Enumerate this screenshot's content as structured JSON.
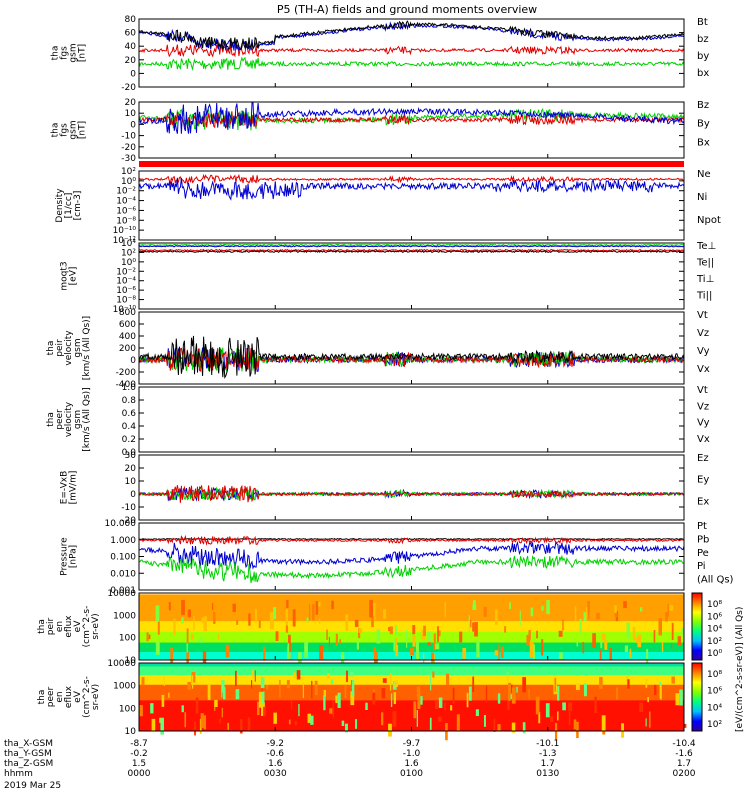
{
  "title": "P5 (TH-A) fields and ground moments overview",
  "colors": {
    "black": "#000000",
    "red": "#e00000",
    "green": "#00d000",
    "blue": "#0000d0"
  },
  "panels": [
    {
      "ylabel": [
        "tha",
        "fgs",
        "gsm",
        "[nT]"
      ],
      "ticks": [
        "80",
        "60",
        "40",
        "20",
        "0",
        "-20"
      ],
      "ylim": [
        -20,
        80
      ],
      "legend": [
        {
          "name": "Bt",
          "color": "#000000"
        },
        {
          "name": "bz",
          "color": "#e00000"
        },
        {
          "name": "by",
          "color": "#00d000"
        },
        {
          "name": "bx",
          "color": "#0000d0"
        }
      ]
    },
    {
      "ylabel": [
        "tha",
        "fgs",
        "gsm",
        "[nT]"
      ],
      "ticks": [
        "20",
        "10",
        "0",
        "-10",
        "-20",
        "-30"
      ],
      "ylim": [
        -35,
        25
      ],
      "legend": [
        {
          "name": "Bz",
          "color": "#e00000"
        },
        {
          "name": "By",
          "color": "#00d000"
        },
        {
          "name": "Bx",
          "color": "#0000d0"
        }
      ]
    },
    {
      "ylabel": [
        "Density",
        "[1/cc]",
        "[cm-3]"
      ],
      "ticks": [
        "10²",
        "10⁰",
        "10⁻²",
        "10⁻⁴",
        "10⁻⁶",
        "10⁻⁸",
        "10⁻¹⁰",
        "10⁻¹²"
      ],
      "legend": [
        {
          "name": "Ne",
          "color": "#e00000"
        },
        {
          "name": "Ni",
          "color": "#000000"
        },
        {
          "name": "Npot",
          "color": "#0000d0"
        }
      ]
    },
    {
      "ylabel": [
        "moqt3",
        "[eV]"
      ],
      "ticks": [
        "10⁴",
        "10²",
        "10⁰",
        "10⁻²",
        "10⁻⁴",
        "10⁻⁶",
        "10⁻⁸",
        "10⁻¹⁰"
      ],
      "legend": [
        {
          "name": "Te⊥",
          "color": "#e00000"
        },
        {
          "name": "Te||",
          "color": "#000000"
        },
        {
          "name": "Ti⊥",
          "color": "#0000d0"
        },
        {
          "name": "Ti||",
          "color": "#00d000"
        }
      ]
    },
    {
      "ylabel": [
        "tha",
        "peir",
        "velocity",
        "gsm",
        "[km/s (All Qs)]"
      ],
      "ticks": [
        "800",
        "600",
        "400",
        "200",
        "0",
        "-200",
        "-400"
      ],
      "ylim": [
        -400,
        800
      ],
      "legend": [
        {
          "name": "Vt",
          "color": "#000000"
        },
        {
          "name": "Vz",
          "color": "#e00000"
        },
        {
          "name": "Vy",
          "color": "#00d000"
        },
        {
          "name": "Vx",
          "color": "#0000d0"
        }
      ]
    },
    {
      "ylabel": [
        "tha",
        "peer",
        "velocity",
        "gsm",
        "[km/s (All Qs)]"
      ],
      "ticks": [
        "1.0",
        "0.8",
        "0.6",
        "0.4",
        "0.2",
        "0.0"
      ],
      "ylim": [
        0,
        1
      ],
      "legend": [
        {
          "name": "Vt",
          "color": "#000000"
        },
        {
          "name": "Vz",
          "color": "#e00000"
        },
        {
          "name": "Vy",
          "color": "#00d000"
        },
        {
          "name": "Vx",
          "color": "#0000d0"
        }
      ]
    },
    {
      "ylabel": [
        "E=-VxB",
        "[mV/m]"
      ],
      "ticks": [
        "30",
        "20",
        "10",
        "0",
        "-10",
        "-20"
      ],
      "ylim": [
        -20,
        30
      ],
      "legend": [
        {
          "name": "Ez",
          "color": "#e00000"
        },
        {
          "name": "Ey",
          "color": "#00d000"
        },
        {
          "name": "Ex",
          "color": "#0000d0"
        }
      ]
    },
    {
      "ylabel": [
        "Pressure",
        "[nPa]"
      ],
      "ticks": [
        "10.000",
        "1.000",
        "0.100",
        "0.010",
        "0.001"
      ],
      "legend": [
        {
          "name": "Pt",
          "color": "#000000"
        },
        {
          "name": "Pb",
          "color": "#e00000"
        },
        {
          "name": "Pe",
          "color": "#00d000"
        },
        {
          "name": "Pi",
          "color": "#0000d0"
        },
        {
          "name": "(All Qs)",
          "color": "#000000"
        }
      ]
    },
    {
      "ylabel": [
        "tha",
        "peir",
        "en",
        "eflux",
        "eV",
        "(cm^2-s-",
        "sr-eV)"
      ],
      "ticks": [
        "10000",
        "1000",
        "100",
        "10"
      ]
    },
    {
      "ylabel": [
        "tha",
        "peer",
        "en",
        "eflux",
        "eV",
        "(cm^2-s-",
        "sr-eV)"
      ],
      "ticks": [
        "10000",
        "1000",
        "100",
        "10"
      ]
    }
  ],
  "colorbar": {
    "label": "[eV/(cm^2-s-sr-eV)] (All Qs)",
    "ticks1": [
      "10⁸",
      "10⁶",
      "10⁴",
      "10²",
      "10⁰"
    ],
    "ticks2": [
      "10⁸",
      "10⁶",
      "10⁴",
      "10²"
    ]
  },
  "xaxis": {
    "rows": [
      "tha_X-GSM",
      "tha_Y-GSM",
      "tha_Z-GSM",
      "hhmm"
    ],
    "date": "2019 Mar 25",
    "ticks": [
      [
        "-8.7",
        "-9.2",
        "-9.7",
        "-10.1",
        "-10.4"
      ],
      [
        "-0.2",
        "-0.6",
        "-1.0",
        "-1.3",
        "-1.6"
      ],
      [
        "1.5",
        "1.6",
        "1.6",
        "1.7",
        "1.7"
      ],
      [
        "0000",
        "0030",
        "0100",
        "0130",
        "0200"
      ]
    ]
  },
  "chart_data": {
    "type": "line",
    "title": "P5 (TH-A) fields and ground moments overview",
    "x": [
      "0000",
      "0030",
      "0100",
      "0130",
      "0200"
    ],
    "xlim": [
      "0000",
      "0200"
    ],
    "series": [
      {
        "name": "Bt",
        "values": [
          58,
          45,
          55,
          45,
          40
        ]
      },
      {
        "name": "bz",
        "values": [
          18,
          15,
          12,
          14,
          12
        ]
      },
      {
        "name": "by",
        "values": [
          2,
          -5,
          5,
          0,
          5
        ]
      },
      {
        "name": "bx",
        "values": [
          58,
          43,
          55,
          43,
          38
        ]
      }
    ]
  }
}
